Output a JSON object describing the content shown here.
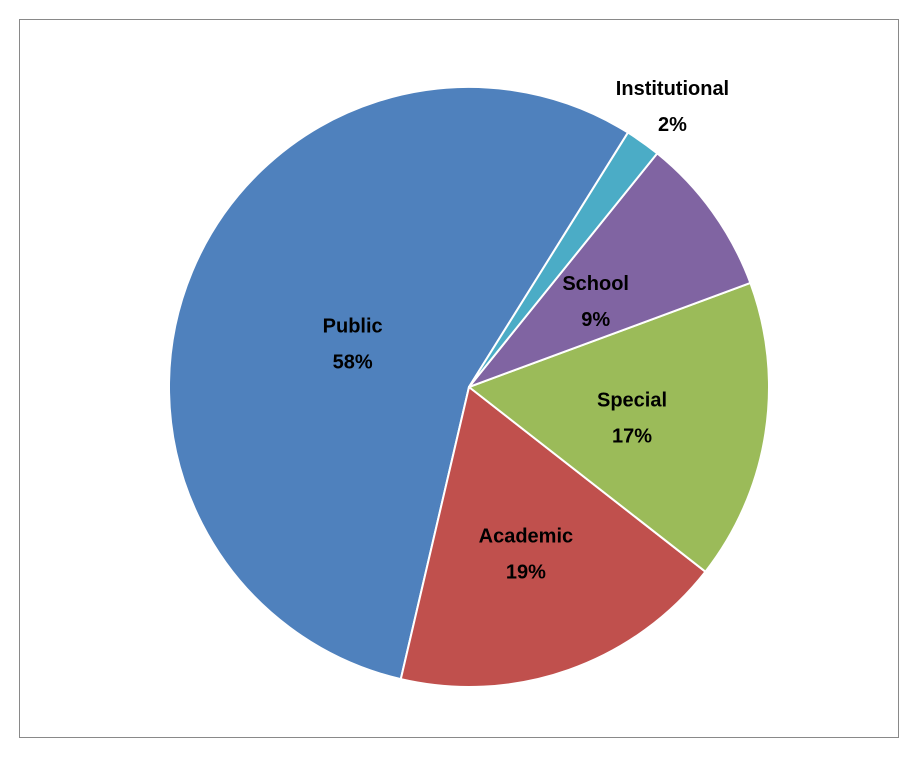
{
  "chart_data": {
    "type": "pie",
    "title": "",
    "slices": [
      {
        "label": "Public",
        "value": 58,
        "display": "58%",
        "color": "#4F81BD"
      },
      {
        "label": "Academic",
        "value": 19,
        "display": "19%",
        "color": "#C0504D"
      },
      {
        "label": "Special",
        "value": 17,
        "display": "17%",
        "color": "#9BBB59"
      },
      {
        "label": "School",
        "value": 9,
        "display": "9%",
        "color": "#8064A2"
      },
      {
        "label": "Institutional",
        "value": 2,
        "display": "2%",
        "color": "#4BACC6"
      }
    ],
    "legend": "none",
    "data_labels": "category and percentage"
  }
}
